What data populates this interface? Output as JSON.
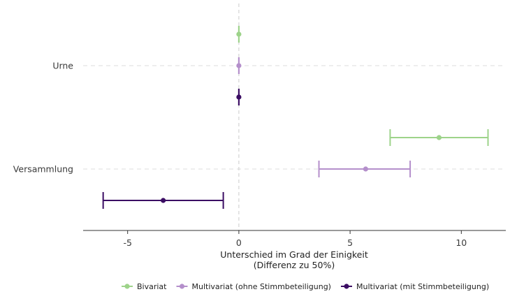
{
  "chart_data": {
    "type": "scatter",
    "subtype": "coefficient-plot-with-error-bars",
    "orientation": "horizontal",
    "title": "",
    "xlabel_line1": "Unterschied im Grad der Einigkeit",
    "xlabel_line2": "(Differenz zu 50%)",
    "ylabel": "",
    "xlim": [
      -7,
      12
    ],
    "x_ticks": [
      -5,
      0,
      5,
      10
    ],
    "x_tick_labels": [
      "-5",
      "0",
      "5",
      "10"
    ],
    "reference_line_x": 0,
    "categories": [
      "Urne",
      "Versammlung"
    ],
    "grid": "horizontal dashed at categories",
    "legend_position": "bottom",
    "series": [
      {
        "name": "Bivariat",
        "color": "#9dd38a",
        "points": [
          {
            "category": "Urne",
            "estimate": 0.0,
            "lower": 0.0,
            "upper": 0.0
          },
          {
            "category": "Versammlung",
            "estimate": 9.0,
            "lower": 6.8,
            "upper": 11.2
          }
        ]
      },
      {
        "name": "Multivariat (ohne Stimmbeteiligung)",
        "color": "#b48fcb",
        "points": [
          {
            "category": "Urne",
            "estimate": 0.0,
            "lower": 0.0,
            "upper": 0.0
          },
          {
            "category": "Versammlung",
            "estimate": 5.7,
            "lower": 3.6,
            "upper": 7.7
          }
        ]
      },
      {
        "name": "Multivariat (mit Stimmbeteiligung)",
        "color": "#3b0d63",
        "points": [
          {
            "category": "Urne",
            "estimate": 0.0,
            "lower": 0.0,
            "upper": 0.0
          },
          {
            "category": "Versammlung",
            "estimate": -3.4,
            "lower": -6.1,
            "upper": -0.7
          }
        ]
      }
    ]
  }
}
